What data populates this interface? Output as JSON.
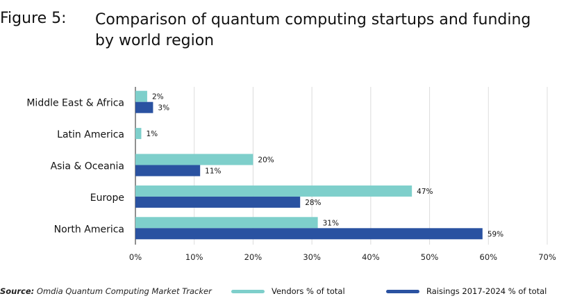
{
  "figure": {
    "label": "Figure 5:",
    "title": "Comparison of quantum computing startups and funding by world region"
  },
  "source": {
    "prefix": "Source:",
    "text": "Omdia Quantum Computing Market Tracker"
  },
  "colors": {
    "vendors": "#7ecfcb",
    "raisings": "#2a52a1",
    "grid": "#dcdcdc",
    "axis": "#222222"
  },
  "chart_data": {
    "type": "bar",
    "orientation": "horizontal",
    "title": "Comparison of quantum computing startups and funding by world region",
    "categories": [
      "Middle East & Africa",
      "Latin America",
      "Asia & Oceania",
      "Europe",
      "North America"
    ],
    "series": [
      {
        "name": "Vendors % of total",
        "values": [
          2,
          1,
          20,
          47,
          31
        ],
        "labels": [
          "2%",
          "1%",
          "20%",
          "47%",
          "31%"
        ]
      },
      {
        "name": "Raisings 2017-2024 % of total",
        "values": [
          3,
          null,
          11,
          28,
          59
        ],
        "labels": [
          "3%",
          "",
          "11%",
          "28%",
          "59%"
        ]
      }
    ],
    "xlim": [
      0,
      70
    ],
    "xticks": [
      0,
      10,
      20,
      30,
      40,
      50,
      60,
      70
    ],
    "xtick_labels": [
      "0%",
      "10%",
      "20%",
      "30%",
      "40%",
      "50%",
      "60%",
      "70%"
    ],
    "grid": true,
    "legend_position": "bottom"
  }
}
